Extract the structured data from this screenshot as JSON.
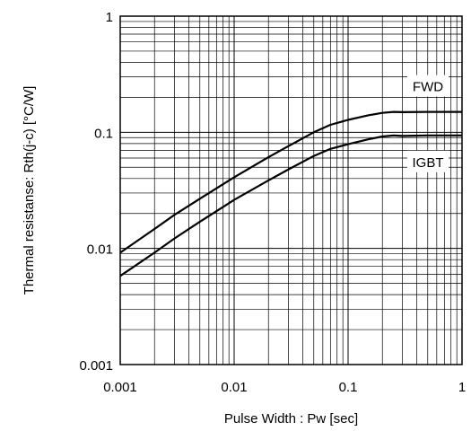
{
  "chart_data": {
    "type": "line",
    "title": "",
    "xlabel": "Pulse Width : Pw [sec]",
    "ylabel": "Thermal resistanse: Rth(j-c) [°C/W]",
    "xscale": "log",
    "yscale": "log",
    "xlim": [
      0.001,
      1
    ],
    "ylim": [
      0.001,
      1
    ],
    "grid": true,
    "xticks": [
      "0.001",
      "0.01",
      "0.1",
      "1"
    ],
    "yticks": [
      "0.001",
      "0.01",
      "0.1",
      "1"
    ],
    "series": [
      {
        "name": "FWD",
        "x": [
          0.001,
          0.002,
          0.003,
          0.005,
          0.01,
          0.02,
          0.03,
          0.05,
          0.07,
          0.1,
          0.15,
          0.2,
          0.25,
          0.3,
          0.5,
          0.7,
          1
        ],
        "y": [
          0.0092,
          0.0147,
          0.0195,
          0.0268,
          0.041,
          0.061,
          0.076,
          0.1,
          0.116,
          0.128,
          0.14,
          0.147,
          0.15,
          0.149,
          0.15,
          0.15,
          0.15
        ]
      },
      {
        "name": "IGBT",
        "x": [
          0.001,
          0.002,
          0.003,
          0.005,
          0.01,
          0.02,
          0.03,
          0.05,
          0.07,
          0.1,
          0.15,
          0.2,
          0.25,
          0.3,
          0.5,
          0.7,
          1
        ],
        "y": [
          0.0058,
          0.0092,
          0.0122,
          0.017,
          0.0262,
          0.0385,
          0.048,
          0.0625,
          0.072,
          0.079,
          0.087,
          0.092,
          0.094,
          0.093,
          0.094,
          0.094,
          0.094
        ]
      }
    ]
  },
  "colors": {
    "line": "#000000",
    "grid": "#000000",
    "background": "#ffffff"
  }
}
